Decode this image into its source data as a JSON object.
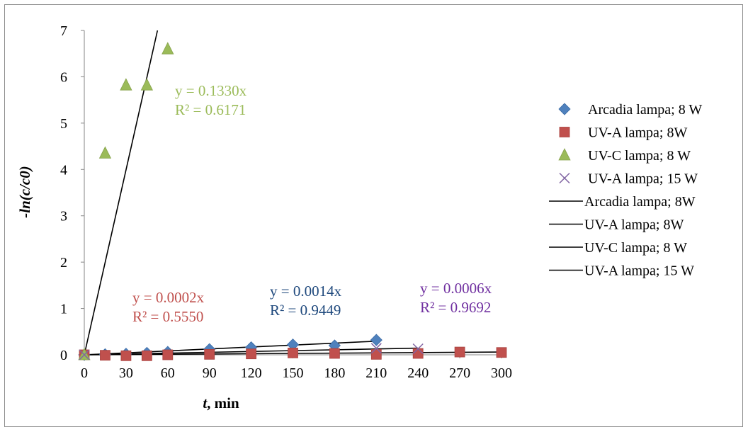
{
  "chart_data": {
    "type": "scatter",
    "xlabel_italic": "t",
    "xlabel_rest": ", min",
    "ylabel": "-ln(c/c0)",
    "xlim": [
      0,
      300
    ],
    "ylim": [
      0,
      7
    ],
    "xticks": [
      "0",
      "30",
      "60",
      "90",
      "120",
      "150",
      "180",
      "210",
      "240",
      "270",
      "300"
    ],
    "yticks": [
      "0",
      "1",
      "2",
      "3",
      "4",
      "5",
      "6",
      "7"
    ],
    "grid": false,
    "legend_position": "right",
    "series": [
      {
        "name": "Arcadia lampa; 8 W",
        "marker": "diamond",
        "color": "#4f81bd",
        "x": [
          0,
          15,
          30,
          45,
          60,
          90,
          120,
          150,
          180,
          210
        ],
        "y": [
          0,
          0.01,
          0.02,
          0.04,
          0.06,
          0.12,
          0.16,
          0.22,
          0.2,
          0.32
        ]
      },
      {
        "name": "UV-A lampa; 8W",
        "marker": "square",
        "color": "#c0504d",
        "x": [
          0,
          15,
          30,
          45,
          60,
          90,
          120,
          150,
          180,
          210,
          240,
          270,
          300
        ],
        "y": [
          0,
          -0.01,
          -0.02,
          -0.02,
          0.0,
          0.01,
          0.02,
          0.04,
          0.03,
          0.01,
          0.03,
          0.06,
          0.05
        ]
      },
      {
        "name": "UV-C lampa; 8 W",
        "marker": "triangle",
        "color": "#9bbb59",
        "x": [
          0,
          15,
          30,
          45,
          60
        ],
        "y": [
          0,
          4.35,
          5.82,
          5.82,
          6.6
        ]
      },
      {
        "name": "UV-A lampa; 15 W",
        "marker": "x",
        "color": "#8064a2",
        "x": [
          0,
          210,
          240
        ],
        "y": [
          0,
          0.14,
          0.13
        ]
      }
    ],
    "trendlines": [
      {
        "name": "Arcadia lampa; 8W",
        "slope": 0.0014,
        "x_end": 210,
        "color": "#000000"
      },
      {
        "name": "UV-A lampa; 8W",
        "slope": 0.0002,
        "x_end": 300,
        "color": "#000000"
      },
      {
        "name": "UV-C lampa; 8 W",
        "slope": 0.133,
        "x_end": 60,
        "color": "#000000"
      },
      {
        "name": "UV-A lampa; 15 W",
        "slope": 0.0006,
        "x_end": 240,
        "color": "#000000"
      }
    ],
    "annotations": [
      {
        "eq": "y = 0.1330x",
        "r2": "R² = 0.6171",
        "color": "#9bbb59"
      },
      {
        "eq": "y = 0.0002x",
        "r2": "R² = 0.5550",
        "color": "#c0504d"
      },
      {
        "eq": "y = 0.0014x",
        "r2": "R² = 0.9449",
        "color": "#1f497d"
      },
      {
        "eq": "y = 0.0006x",
        "r2": "R² = 0.9692",
        "color": "#7030a0"
      }
    ]
  }
}
